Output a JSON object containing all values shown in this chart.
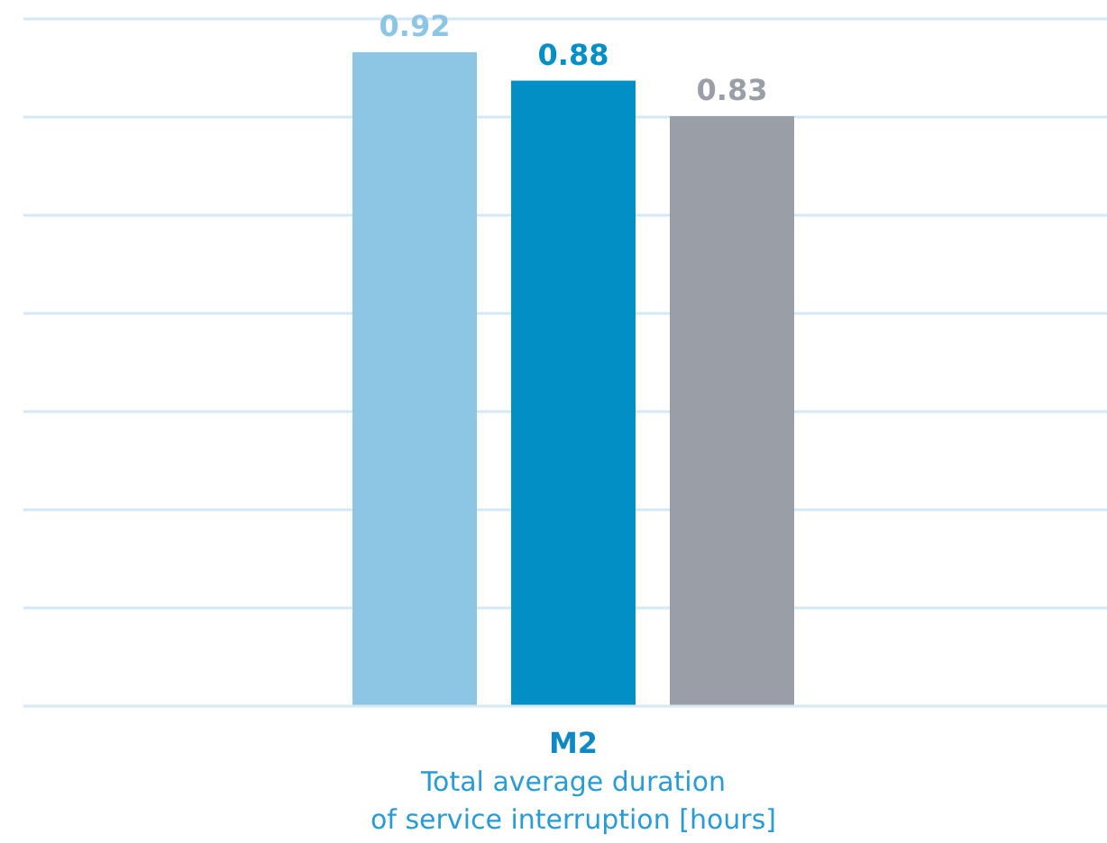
{
  "chart_data": {
    "type": "bar",
    "categories": [
      null,
      null,
      null
    ],
    "xlabel": "M2\nTotal average duration\nof service interruption [hours]",
    "values": [
      0.92,
      0.88,
      0.83
    ],
    "colors": [
      "#8dc6e5",
      "#028fc5",
      "#9a9ea6"
    ],
    "data_labels": true,
    "grid": true
  }
}
